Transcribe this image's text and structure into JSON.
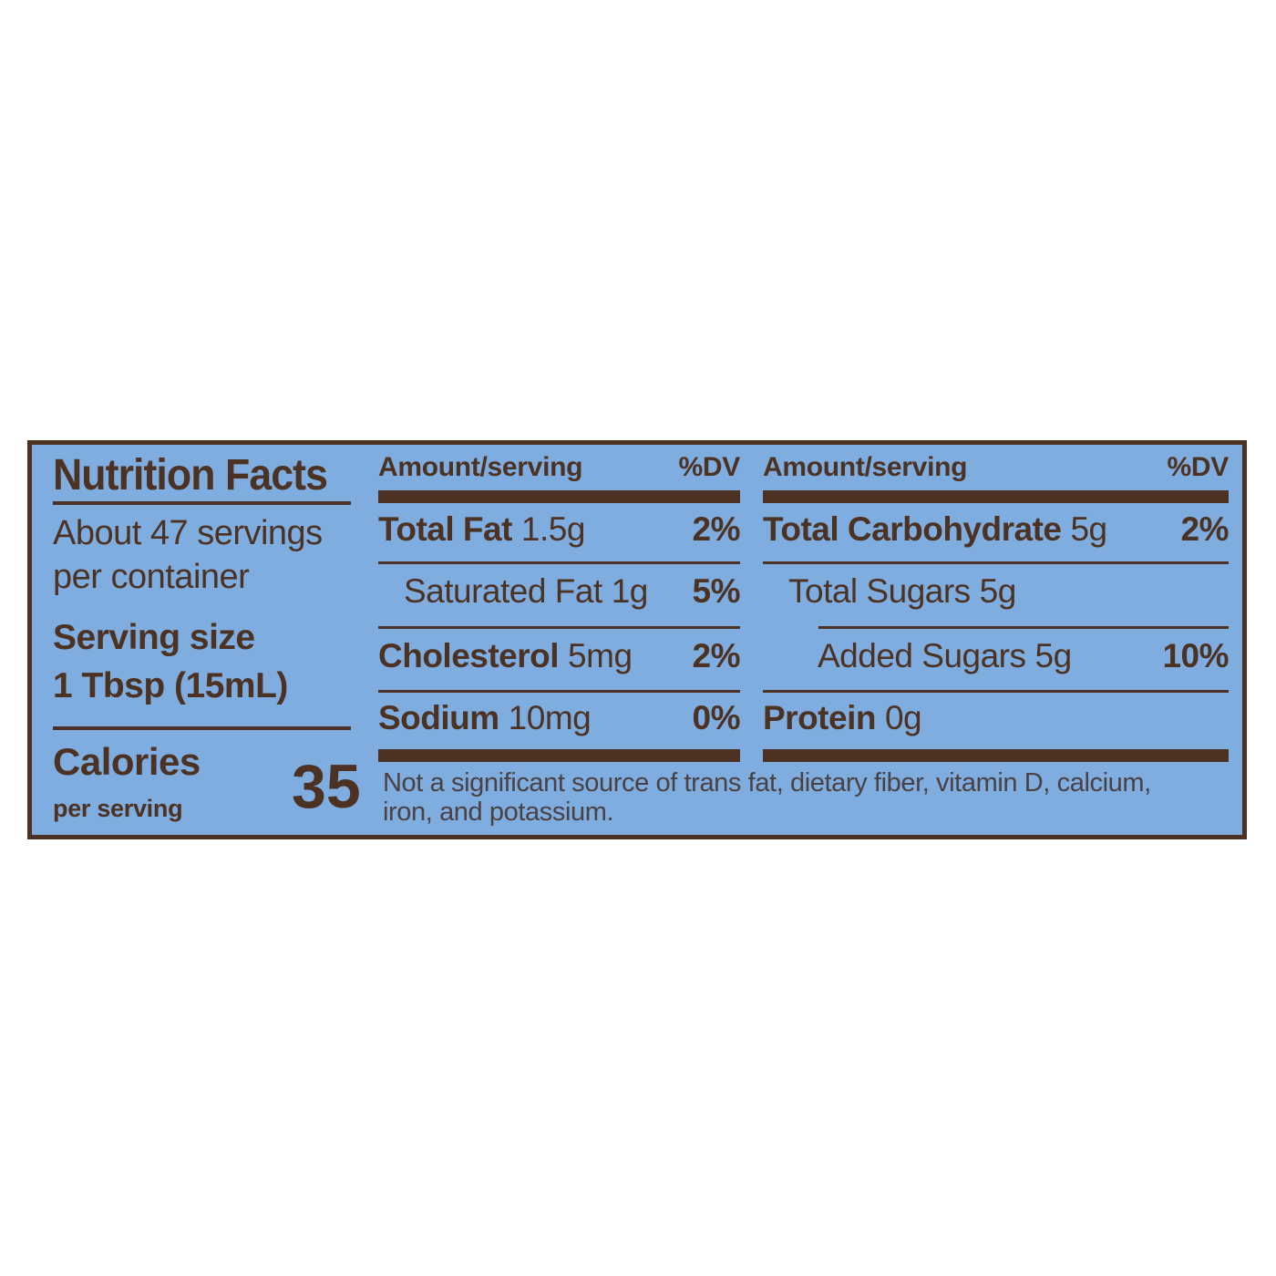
{
  "colors": {
    "panel_background": "#7fade0",
    "ink_brown": "#4b3223",
    "footnote_ink": "#4a4144"
  },
  "left": {
    "title": "Nutrition Facts",
    "servings_line1": "About 47 servings",
    "servings_line2": "per container",
    "serving_size_label": "Serving size",
    "serving_size_value": "1 Tbsp (15mL)",
    "calories_label": "Calories",
    "calories_sublabel": "per serving",
    "calories_value": "35"
  },
  "table": {
    "amount_header": "Amount/serving",
    "dv_header": "%DV",
    "columns": [
      {
        "rows": [
          {
            "name": "Total Fat",
            "value": "1.5g",
            "dv": "2%"
          },
          {
            "name": "Saturated Fat",
            "value": "1g",
            "dv": "5%"
          },
          {
            "name": "Cholesterol",
            "value": "5mg",
            "dv": "2%"
          },
          {
            "name": "Sodium",
            "value": "10mg",
            "dv": "0%"
          }
        ]
      },
      {
        "rows": [
          {
            "name": "Total Carbohydrate",
            "value": "5g",
            "dv": "2%"
          },
          {
            "name": "Total Sugars",
            "value": "5g",
            "dv": ""
          },
          {
            "name": "Added Sugars",
            "value": "5g",
            "dv": "10%"
          },
          {
            "name": "Protein",
            "value": "0g",
            "dv": ""
          }
        ]
      }
    ]
  },
  "footnote": {
    "line1": "Not a significant source of trans fat, dietary fiber, vitamin D, calcium,",
    "line2": "iron, and potassium."
  }
}
